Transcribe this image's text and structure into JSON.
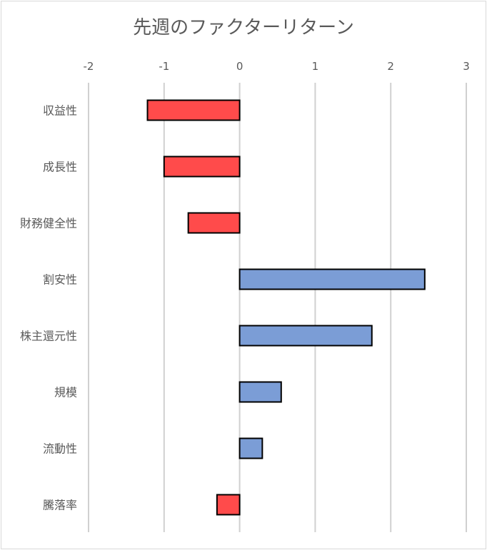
{
  "chart_data": {
    "type": "bar",
    "orientation": "horizontal",
    "title": "先週のファクターリターン",
    "categories": [
      "収益性",
      "成長性",
      "財務健全性",
      "割安性",
      "株主還元性",
      "規模",
      "流動性",
      "騰落率"
    ],
    "values": [
      -1.22,
      -1.0,
      -0.68,
      2.45,
      1.75,
      0.55,
      0.3,
      -0.3
    ],
    "xlim": [
      -2,
      3
    ],
    "xticks": [
      "-2",
      "-1",
      "0",
      "1",
      "2",
      "3"
    ],
    "grid": true,
    "colors": {
      "positive": "#7b9dd6",
      "negative": "#ff4b4b"
    }
  }
}
